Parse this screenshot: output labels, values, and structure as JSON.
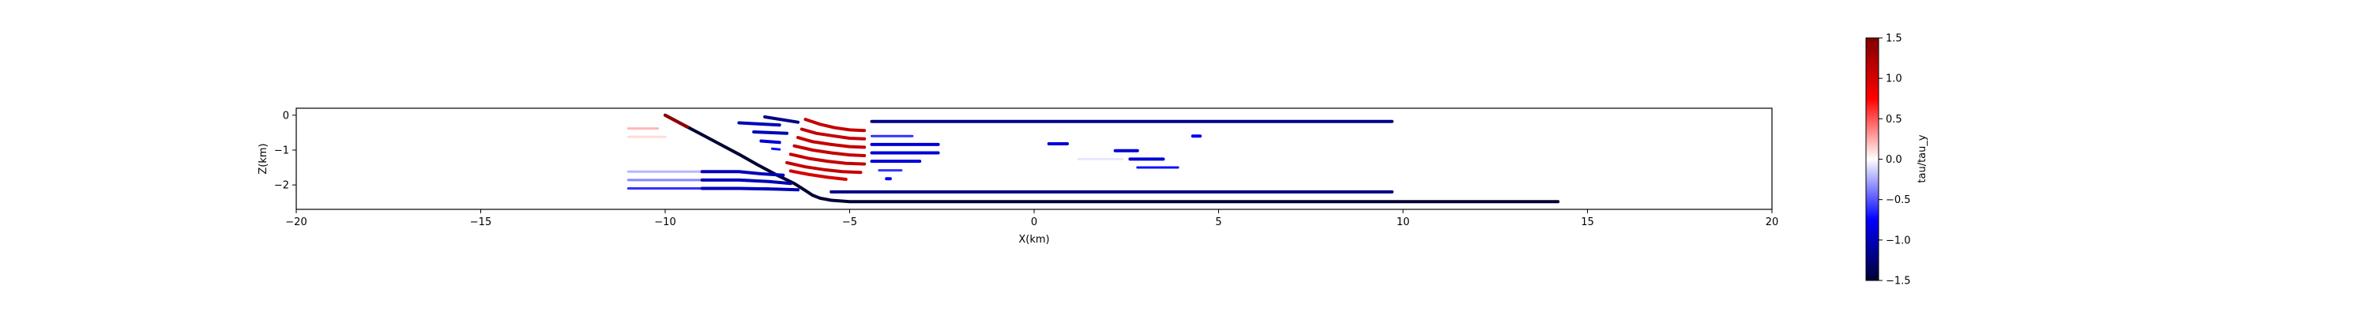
{
  "chart_data": {
    "type": "scatter",
    "title": "",
    "xlabel": "X(km)",
    "ylabel": "Z(km)",
    "xlim": [
      -20,
      20
    ],
    "ylim": [
      -2.7,
      0.2
    ],
    "x_ticks": [
      -20,
      -15,
      -10,
      -5,
      0,
      5,
      10,
      15,
      20
    ],
    "x_tick_labels": [
      "−20",
      "−15",
      "−10",
      "−5",
      "0",
      "5",
      "10",
      "15",
      "20"
    ],
    "y_ticks": [
      0,
      -1,
      -2
    ],
    "y_tick_labels": [
      "0",
      "−1",
      "−2"
    ],
    "grid": false,
    "colorbar": {
      "label": "tau/tau_y",
      "range": [
        -1.5,
        1.5
      ],
      "ticks": [
        1.5,
        1.0,
        0.5,
        0.0,
        -0.5,
        -1.0,
        -1.5
      ],
      "tick_labels": [
        "1.5",
        "1.0",
        "0.5",
        "0.0",
        "−0.5",
        "−1.0",
        "−1.5"
      ],
      "colormap": "seismic",
      "colors": [
        "#000033",
        "#0000ff",
        "#ffffff",
        "#ff0000",
        "#800000"
      ]
    },
    "series": [
      {
        "x": [
          -10,
          -9.5,
          -9,
          -8.5,
          -8,
          -7.5,
          -7,
          -6.5,
          -6.2,
          -6,
          -5.8,
          -5.5,
          -5,
          -3,
          0,
          5,
          10,
          14.2
        ],
        "y": [
          0,
          -0.28,
          -0.56,
          -0.84,
          -1.12,
          -1.42,
          -1.7,
          -1.96,
          -2.16,
          -2.3,
          -2.38,
          -2.44,
          -2.48,
          -2.48,
          -2.48,
          -2.48,
          -2.48,
          -2.48
        ],
        "value": -1.5
      },
      {
        "x": [
          -10,
          -9.7,
          -9.4
        ],
        "y": [
          0,
          -0.17,
          -0.34
        ],
        "value": 1.4
      },
      {
        "x": [
          -4.4,
          0,
          5,
          9.7
        ],
        "y": [
          -0.18,
          -0.18,
          -0.18,
          -0.18
        ],
        "value": -1.2
      },
      {
        "x": [
          -5.5,
          0,
          5,
          9.7
        ],
        "y": [
          -2.2,
          -2.2,
          -2.2,
          -2.2
        ],
        "value": -1.2
      },
      {
        "x": [
          -4.4,
          -3.8,
          -3.2,
          -2.6
        ],
        "y": [
          -0.84,
          -0.84,
          -0.84,
          -0.84
        ],
        "value": -0.9
      },
      {
        "x": [
          -4.4,
          -3.8,
          -3.2,
          -2.6
        ],
        "y": [
          -1.08,
          -1.08,
          -1.08,
          -1.08
        ],
        "value": -0.9
      },
      {
        "x": [
          -4.4,
          -3.8,
          -3.1
        ],
        "y": [
          -1.32,
          -1.32,
          -1.32
        ],
        "value": -0.9
      },
      {
        "x": [
          -4.4,
          -3.7,
          -3.3
        ],
        "y": [
          -0.6,
          -0.6,
          -0.6
        ],
        "value": -0.6
      },
      {
        "x": [
          -4.2,
          -3.6
        ],
        "y": [
          -1.58,
          -1.58
        ],
        "value": -0.6
      },
      {
        "x": [
          -4.0,
          -3.9
        ],
        "y": [
          -1.82,
          -1.82
        ],
        "value": -0.8
      },
      {
        "x": [
          -7.3,
          -6.4
        ],
        "y": [
          -0.05,
          -0.2
        ],
        "value": -1.2
      },
      {
        "x": [
          -8.0,
          -6.9
        ],
        "y": [
          -0.22,
          -0.28
        ],
        "value": -1.0
      },
      {
        "x": [
          -7.6,
          -6.7
        ],
        "y": [
          -0.48,
          -0.52
        ],
        "value": -1.0
      },
      {
        "x": [
          -7.4,
          -6.9
        ],
        "y": [
          -0.74,
          -0.78
        ],
        "value": -0.9
      },
      {
        "x": [
          -7.1,
          -6.9
        ],
        "y": [
          -0.96,
          -0.98
        ],
        "value": -0.7
      },
      {
        "x": [
          -6.2,
          -5.8,
          -5.4,
          -5.0,
          -4.6
        ],
        "y": [
          -0.12,
          -0.26,
          -0.36,
          -0.42,
          -0.44
        ],
        "value": 1.1
      },
      {
        "x": [
          -6.3,
          -5.9,
          -5.4,
          -5.0,
          -4.6
        ],
        "y": [
          -0.4,
          -0.52,
          -0.6,
          -0.66,
          -0.68
        ],
        "value": 1.1
      },
      {
        "x": [
          -6.4,
          -6.0,
          -5.5,
          -5.0,
          -4.6
        ],
        "y": [
          -0.64,
          -0.76,
          -0.84,
          -0.9,
          -0.92
        ],
        "value": 1.1
      },
      {
        "x": [
          -6.5,
          -6.0,
          -5.5,
          -5.0,
          -4.6
        ],
        "y": [
          -0.88,
          -1.0,
          -1.08,
          -1.14,
          -1.16
        ],
        "value": 1.1
      },
      {
        "x": [
          -6.6,
          -6.1,
          -5.6,
          -5.1,
          -4.6
        ],
        "y": [
          -1.12,
          -1.24,
          -1.32,
          -1.38,
          -1.4
        ],
        "value": 1.1
      },
      {
        "x": [
          -6.7,
          -6.2,
          -5.7,
          -5.2,
          -4.7
        ],
        "y": [
          -1.36,
          -1.48,
          -1.56,
          -1.62,
          -1.64
        ],
        "value": 1.1
      },
      {
        "x": [
          -6.6,
          -6.1,
          -5.6,
          -5.1
        ],
        "y": [
          -1.6,
          -1.7,
          -1.78,
          -1.84
        ],
        "value": 1.0
      },
      {
        "x": [
          -11.0,
          -10.6,
          -10.2
        ],
        "y": [
          -0.38,
          -0.38,
          -0.38
        ],
        "value": 0.3
      },
      {
        "x": [
          -11.0,
          -10.5,
          -10.0
        ],
        "y": [
          -0.62,
          -0.62,
          -0.62
        ],
        "value": 0.15
      },
      {
        "x": [
          -11.0,
          -10.0,
          -9.0,
          -8.2
        ],
        "y": [
          -1.62,
          -1.62,
          -1.62,
          -1.62
        ],
        "value": -0.3
      },
      {
        "x": [
          -11.0,
          -10.0,
          -9.0,
          -7.7
        ],
        "y": [
          -1.86,
          -1.86,
          -1.86,
          -1.86
        ],
        "value": -0.5
      },
      {
        "x": [
          -11.0,
          -10.0,
          -9.0,
          -7.2
        ],
        "y": [
          -2.1,
          -2.1,
          -2.1,
          -2.1
        ],
        "value": -0.6
      },
      {
        "x": [
          -9.0,
          -8.0,
          -7.4,
          -6.8
        ],
        "y": [
          -1.62,
          -1.62,
          -1.68,
          -1.72
        ],
        "value": -1.0
      },
      {
        "x": [
          -9.0,
          -8.0,
          -7.2,
          -6.6
        ],
        "y": [
          -1.86,
          -1.86,
          -1.9,
          -1.96
        ],
        "value": -1.0
      },
      {
        "x": [
          -9.0,
          -8.0,
          -7.0,
          -6.4
        ],
        "y": [
          -2.1,
          -2.1,
          -2.12,
          -2.14
        ],
        "value": -1.0
      },
      {
        "x": [
          0.4,
          0.9
        ],
        "y": [
          -0.82,
          -0.82
        ],
        "value": -0.9
      },
      {
        "x": [
          2.2,
          2.8
        ],
        "y": [
          -1.02,
          -1.02
        ],
        "value": -0.9
      },
      {
        "x": [
          2.6,
          3.5
        ],
        "y": [
          -1.26,
          -1.26
        ],
        "value": -0.9
      },
      {
        "x": [
          2.8,
          3.9
        ],
        "y": [
          -1.5,
          -1.5
        ],
        "value": -0.7
      },
      {
        "x": [
          4.3,
          4.5
        ],
        "y": [
          -0.6,
          -0.6
        ],
        "value": -0.8
      },
      {
        "x": [
          1.2,
          2.4
        ],
        "y": [
          -1.26,
          -1.26
        ],
        "value": -0.1
      }
    ]
  }
}
